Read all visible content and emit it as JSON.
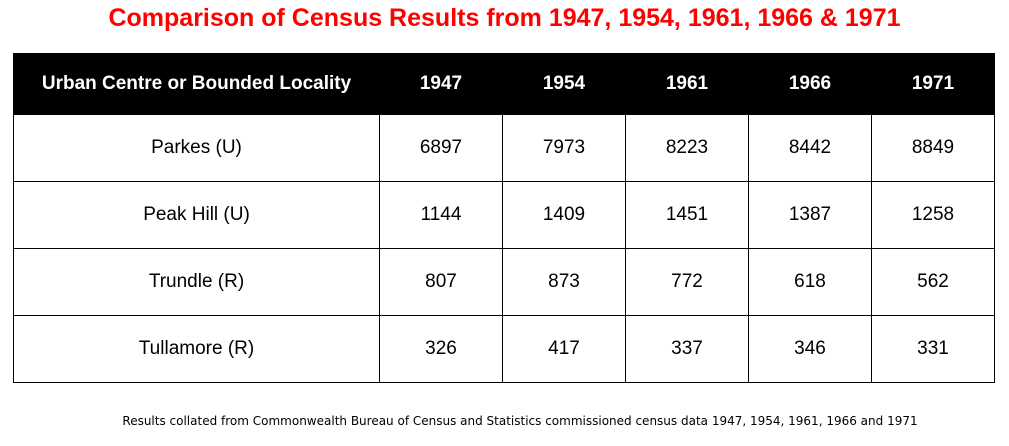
{
  "title": "Comparison of Census Results from 1947, 1954, 1961, 1966 & 1971",
  "table": {
    "headers": [
      "Urban Centre or Bounded Locality",
      "1947",
      "1954",
      "1961",
      "1966",
      "1971"
    ],
    "rows": [
      [
        "Parkes (U)",
        "6897",
        "7973",
        "8223",
        "8442",
        "8849"
      ],
      [
        "Peak Hill (U)",
        "1144",
        "1409",
        "1451",
        "1387",
        "1258"
      ],
      [
        "Trundle (R)",
        "807",
        "873",
        "772",
        "618",
        "562"
      ],
      [
        "Tullamore (R)",
        "326",
        "417",
        "337",
        "346",
        "331"
      ]
    ]
  },
  "footnote": "Results collated from Commonwealth Bureau of Census and Statistics commissioned census data 1947, 1954, 1961, 1966 and 1971",
  "colors": {
    "title": "#ff0000",
    "header_bg": "#000000",
    "header_text": "#ffffff"
  }
}
